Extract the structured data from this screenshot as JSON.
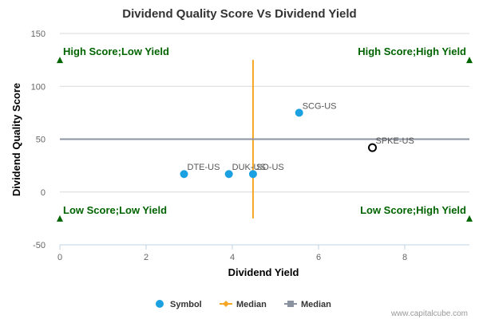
{
  "chart_data": {
    "type": "scatter",
    "title": "Dividend Quality Score Vs Dividend Yield",
    "xlabel": "Dividend Yield",
    "ylabel": "Dividend Quality Score",
    "xlim": [
      0,
      9.5
    ],
    "ylim": [
      -50,
      150
    ],
    "xticks": [
      "0",
      "2",
      "4",
      "6",
      "8"
    ],
    "yticks": [
      "-50",
      "0",
      "50",
      "100",
      "150"
    ],
    "grid": "horizontal",
    "series": [
      {
        "name": "Symbol",
        "color": "#1ba1e2",
        "points": [
          {
            "label": "DTE-US",
            "x": 2.88,
            "y": 17,
            "highlight": false
          },
          {
            "label": "DUK-US",
            "x": 3.92,
            "y": 17,
            "highlight": false
          },
          {
            "label": "SO-US",
            "x": 4.48,
            "y": 17,
            "highlight": false
          },
          {
            "label": "SCG-US",
            "x": 5.55,
            "y": 75,
            "highlight": false
          },
          {
            "label": "SPKE-US",
            "x": 7.25,
            "y": 42,
            "highlight": true
          }
        ]
      },
      {
        "name": "Median",
        "color": "#f5a623",
        "orientation": "vertical",
        "x": 4.48,
        "y_range": [
          -25,
          125
        ]
      },
      {
        "name": "Median",
        "color": "#8c93a0",
        "orientation": "horizontal",
        "y": 50,
        "x_range": [
          0,
          9.5
        ]
      }
    ],
    "quadrant_labels": [
      {
        "text": "High Score;Low Yield",
        "position": "top-left"
      },
      {
        "text": "High Score;High Yield",
        "position": "top-right"
      },
      {
        "text": "Low Score;Low Yield",
        "position": "bottom-left"
      },
      {
        "text": "Low Score;High Yield",
        "position": "bottom-right"
      }
    ],
    "marker_color": "#006400",
    "legend_position": "bottom-center"
  },
  "credit": "www.capitalcube.com"
}
